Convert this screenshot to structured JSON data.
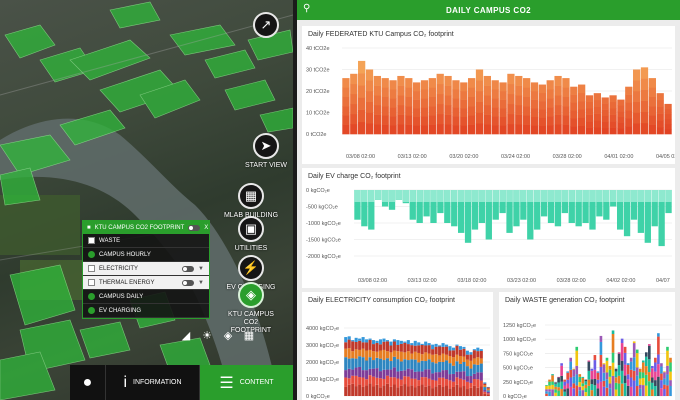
{
  "dashboard": {
    "title": "DAILY CAMPUS CO2"
  },
  "map": {
    "buttons": [
      {
        "name": "compass-button",
        "icon": "compass-icon",
        "glyph": "↗",
        "label": ""
      },
      {
        "name": "start-view-button",
        "icon": "navigation-arrow-icon",
        "glyph": "➤",
        "label": "START VIEW"
      },
      {
        "name": "mlab-building-button",
        "icon": "building-icon",
        "glyph": "▦",
        "label": "MLAB BUILDING"
      },
      {
        "name": "utilities-button",
        "icon": "utilities-icon",
        "glyph": "▣",
        "label": "UTILITIES"
      },
      {
        "name": "ev-charging-button",
        "icon": "ev-charger-icon",
        "glyph": "⚡",
        "label": "EV CHARGING"
      },
      {
        "name": "ktu-campus-co2-button",
        "icon": "layers-icon",
        "glyph": "◈",
        "label": "KTU CAMPUS CO2 FOOTPRINT"
      }
    ],
    "layer_panel": {
      "title": "KTU CAMPUS CO2 FOOTPRINT",
      "close": "X",
      "items": [
        {
          "label": "WASTE",
          "style": "dark",
          "kind": "square"
        },
        {
          "label": "CAMPUS HOURLY",
          "style": "dark",
          "kind": "dot"
        },
        {
          "label": "ELECTRICITY",
          "style": "light",
          "kind": "square"
        },
        {
          "label": "THERMAL ENERGY",
          "style": "light",
          "kind": "square"
        },
        {
          "label": "CAMPUS DAILY",
          "style": "dark",
          "kind": "dot"
        },
        {
          "label": "EV CHARGING",
          "style": "dark",
          "kind": "dot"
        }
      ]
    },
    "bottom_tabs": {
      "information": "INFORMATION",
      "content": "CONTENT"
    }
  },
  "chart_data": [
    {
      "type": "bar",
      "title": "Daily FEDERATED KTU Campus CO₂ footprint",
      "y_ticks": [
        "40 tCO2e",
        "30 tCO2e",
        "20 tCO2e",
        "10 tCO2e",
        "0 tCO2e"
      ],
      "x_ticks": [
        "03/08 02:00",
        "03/13 02:00",
        "03/20 02:00",
        "03/24 02:00",
        "03/28 02:00",
        "04/01 02:00",
        "04/05 02:00"
      ],
      "ylim": [
        0,
        40
      ],
      "values": [
        26,
        28,
        34,
        30,
        27,
        26,
        25,
        27,
        26,
        24,
        25,
        26,
        28,
        27,
        25,
        24,
        26,
        30,
        27,
        25,
        24,
        28,
        27,
        26,
        24,
        23,
        25,
        27,
        26,
        22,
        23,
        18,
        19,
        17,
        18,
        16,
        22,
        30,
        31,
        26,
        19,
        14
      ]
    },
    {
      "type": "bar",
      "title": "Daily EV charge CO₂ footprint",
      "y_ticks": [
        "0 kgCO₂e",
        "-500 kgCO₂e",
        "-1000 kgCO₂e",
        "-1500 kgCO₂e",
        "-2000 kgCO₂e"
      ],
      "x_ticks": [
        "03/08 02:00",
        "03/13 02:00",
        "03/18 02:00",
        "03/23 02:00",
        "03/28 02:00",
        "04/02 02:00",
        "04/07"
      ],
      "ylim": [
        -2000,
        0
      ],
      "values": [
        -900,
        -1100,
        -1200,
        -300,
        -500,
        -600,
        -300,
        -400,
        -900,
        -1000,
        -800,
        -1000,
        -700,
        -1000,
        -1100,
        -1300,
        -1600,
        -1200,
        -1000,
        -1500,
        -900,
        -700,
        -1300,
        -1100,
        -900,
        -1500,
        -1200,
        -800,
        -1000,
        -1100,
        -700,
        -1000,
        -1100,
        -1000,
        -1200,
        -800,
        -900,
        -500,
        -1200,
        -1400,
        -900,
        -1300,
        -1600,
        -1100,
        -1700,
        -700
      ]
    },
    {
      "type": "bar",
      "title": "Daily ELECTRICITY consumption CO₂ footprint",
      "y_ticks": [
        "4000 kgCO₂e",
        "3000 kgCO₂e",
        "2000 kgCO₂e",
        "1000 kgCO₂e",
        "0 kgCO₂e"
      ],
      "ylim": [
        0,
        4500
      ],
      "values": [
        3900,
        3950,
        3700,
        3850,
        3800,
        3900,
        3750,
        3800,
        3700,
        3650,
        3750,
        3800,
        3700,
        3600,
        3750,
        3700,
        3650,
        3600,
        3700,
        3500,
        3650,
        3550,
        3450,
        3600,
        3500,
        3400,
        3450,
        3350,
        3500,
        3400,
        3300,
        3200,
        3400,
        3300,
        3250,
        3000,
        2900,
        3100,
        3200,
        3100,
        900,
        600
      ]
    },
    {
      "type": "bar",
      "title": "Daily WASTE generation CO₂ footprint",
      "y_ticks": [
        "1250 kgCO₂e",
        "1000 kgCO₂e",
        "750 kgCO₂e",
        "500 kgCO₂e",
        "250 kgCO₂e",
        "0 kgCO₂e"
      ],
      "ylim": [
        0,
        1300
      ],
      "values": [
        200,
        300,
        400,
        250,
        350,
        600,
        300,
        450,
        700,
        500,
        900,
        400,
        350,
        300,
        650,
        500,
        750,
        450,
        1100,
        600,
        700,
        550,
        1200,
        500,
        800,
        1050,
        900,
        600,
        700,
        1000,
        850,
        500,
        650,
        800,
        950,
        550,
        700,
        1150,
        600,
        450,
        900,
        700
      ]
    }
  ]
}
